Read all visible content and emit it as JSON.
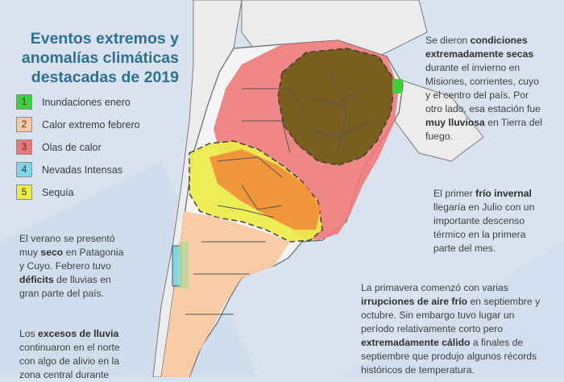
{
  "title": {
    "line1": "Eventos extremos y",
    "line2": "anomalías climáticas",
    "line3": "destacadas de 2019"
  },
  "legend": [
    {
      "num": "1",
      "label": "Inundaciones enero",
      "color": "#3fd03f"
    },
    {
      "num": "2",
      "label": "Calor extremo febrero",
      "color": "#f7c9a2"
    },
    {
      "num": "3",
      "label": "Olas de calor",
      "color": "#ee7878"
    },
    {
      "num": "4",
      "label": "Nevadas Intensas",
      "color": "#7fd6e8"
    },
    {
      "num": "5",
      "label": "Sequía",
      "color": "#eded4a"
    }
  ],
  "colors": {
    "background": "#d9e3f0",
    "land": "#f4f4f4",
    "border_lines": "#555555",
    "heat_wave": "#ee7878",
    "drought": "#eded4a",
    "hot_feb": "#f7c9a2",
    "dry_winter": "#6e5a14",
    "floods": "#3fd03f",
    "snow": "#7fd6e8",
    "title_color": "#2f6f93"
  },
  "texts": {
    "top_right": {
      "p1": "Se dieron ",
      "b1": "condiciones",
      "b2": "extremadamente secas",
      "p2": "durante el invierno en",
      "p3": "Misiones, corrientes, cuyo",
      "p4": "y el centro del país.  Por",
      "p5": "otro lado, esa estación fue",
      "b3": "muy lluviosa",
      "p6": " en Tierra del",
      "p7": "fuego."
    },
    "mid_right": {
      "p1": "El primer ",
      "b1": "frío invernal",
      "p2": "llegaría en Julio con un",
      "p3": "importante descenso",
      "p4": "térmico en la primera",
      "p5": "parte del mes."
    },
    "bottom_right": {
      "p1": "La primavera comenzó con varias",
      "b1": "irrupciones de aire frío",
      "p2": " en septiembre y",
      "p3": "octubre. Sin embargo tuvo lugar un",
      "p4": "período relativamente corto pero",
      "b2": "extremadamente cálido",
      "p5": " a finales de",
      "p6": "septiembre que produjo algunos récords",
      "p7": "históricos de temperatura."
    },
    "left_mid": {
      "p1": "El verano se presentó",
      "p2": "muy ",
      "b1": "seco",
      "p3": " en Patagonia",
      "p4": "y Cuyo. Febrero tuvo",
      "b2": "déficits",
      "p5": " de lluvias en",
      "p6": "gran parte del país."
    },
    "left_bottom": {
      "p1": "Los ",
      "b1": "excesos de lluvia",
      "p2": "continuaron en el norte",
      "p3": "con algo de alivio en la",
      "p4": "zona central durante"
    }
  }
}
